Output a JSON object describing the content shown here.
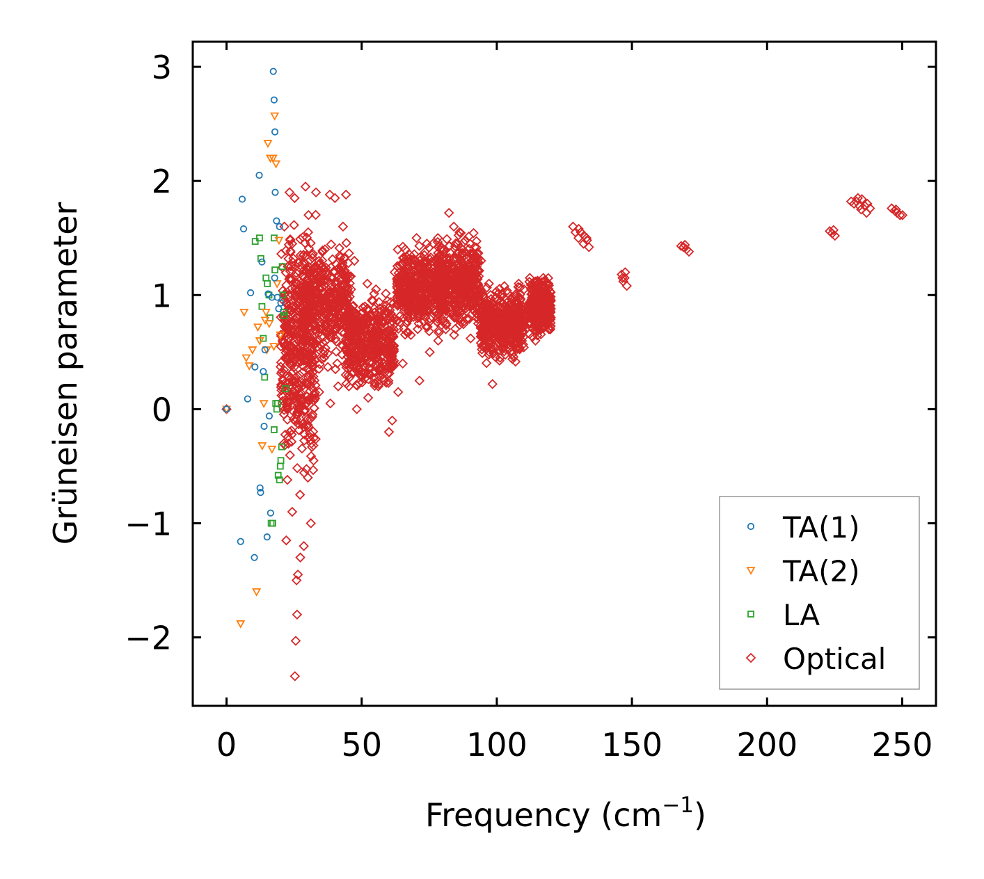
{
  "chart_data": {
    "type": "scatter",
    "title": "",
    "xlabel": "Frequency (cm",
    "xlabel_sup": "−1",
    "xlabel_close": ")",
    "ylabel": "Grüneisen parameter",
    "xlim": [
      -12.5,
      262.5
    ],
    "ylim": [
      -2.6,
      3.22
    ],
    "xticks": [
      0,
      50,
      100,
      150,
      200,
      250
    ],
    "yticks": [
      3,
      2,
      1,
      0,
      -1,
      -2
    ],
    "xtick_labels": [
      "0",
      "50",
      "100",
      "150",
      "200",
      "250"
    ],
    "ytick_labels": [
      "3",
      "2",
      "1",
      "0",
      "−1",
      "−2"
    ],
    "legend_position": "lower-right",
    "series": [
      {
        "name": "TA(1)",
        "marker": "circle",
        "color": "#1f77b4",
        "points": [
          [
            0,
            0
          ],
          [
            5.8,
            1.84
          ],
          [
            6.3,
            1.58
          ],
          [
            7.8,
            0.09
          ],
          [
            8.9,
            1.02
          ],
          [
            10.5,
            0.37
          ],
          [
            12.1,
            2.05
          ],
          [
            12.6,
            -0.73
          ],
          [
            13.1,
            1.29
          ],
          [
            13.6,
            0.33
          ],
          [
            14.2,
            0.52
          ],
          [
            15,
            -1.12
          ],
          [
            15.4,
            1.01
          ],
          [
            16.3,
            -0.91
          ],
          [
            16.8,
            0.98
          ],
          [
            17.3,
            2.96
          ],
          [
            17.6,
            2.71
          ],
          [
            17.9,
            2.43
          ],
          [
            18,
            1.9
          ],
          [
            18.5,
            1.65
          ],
          [
            18.8,
            0.98
          ],
          [
            19.3,
            0.88
          ],
          [
            19.6,
            1.6
          ],
          [
            20.1,
            0.93
          ],
          [
            5.2,
            -1.16
          ],
          [
            10.3,
            -1.3
          ],
          [
            13.9,
            -0.15
          ],
          [
            15.8,
            -0.06
          ],
          [
            12.4,
            -0.69
          ],
          [
            17.8,
            1.15
          ]
        ]
      },
      {
        "name": "TA(2)",
        "marker": "triangle-down",
        "color": "#ff7f0e",
        "points": [
          [
            0,
            0
          ],
          [
            5.2,
            -1.88
          ],
          [
            6.5,
            0.85
          ],
          [
            7.3,
            0.45
          ],
          [
            8.4,
            0.38
          ],
          [
            9.6,
            0.52
          ],
          [
            11.1,
            -1.6
          ],
          [
            11.6,
            0.72
          ],
          [
            12.3,
            0.6
          ],
          [
            13.2,
            -0.32
          ],
          [
            13.8,
            0.05
          ],
          [
            14.3,
            0.78
          ],
          [
            14.6,
            0.85
          ],
          [
            15.3,
            2.33
          ],
          [
            15.8,
            0.75
          ],
          [
            16.2,
            2.2
          ],
          [
            16.8,
            -0.35
          ],
          [
            17.2,
            2.2
          ],
          [
            17.8,
            2.57
          ],
          [
            18.3,
            2.15
          ],
          [
            18.7,
            1.1
          ],
          [
            19.4,
            1.48
          ],
          [
            19.9,
            0.65
          ],
          [
            14.9,
            0.52
          ],
          [
            17.5,
            0.55
          ]
        ]
      },
      {
        "name": "LA",
        "marker": "square",
        "color": "#2ca02c",
        "points": [
          [
            10.6,
            1.47
          ],
          [
            12.2,
            1.5
          ],
          [
            12.7,
            1.32
          ],
          [
            13.1,
            0.9
          ],
          [
            13.6,
            0.62
          ],
          [
            14.1,
            0.28
          ],
          [
            14.6,
            1.15
          ],
          [
            15.1,
            1.1
          ],
          [
            15.7,
            1.0
          ],
          [
            16.1,
            0.8
          ],
          [
            16.5,
            -1.0
          ],
          [
            17.1,
            -1.0
          ],
          [
            17.6,
            1.5
          ],
          [
            17.9,
            1.22
          ],
          [
            18.2,
            0.05
          ],
          [
            18.6,
            0.0
          ],
          [
            19.1,
            -0.58
          ],
          [
            19.6,
            -0.62
          ],
          [
            20.1,
            -0.45
          ],
          [
            20.4,
            -0.33
          ],
          [
            20.6,
            1.25
          ],
          [
            21.1,
            0.85
          ],
          [
            21.4,
            0.82
          ],
          [
            21.8,
            0.18
          ],
          [
            20.8,
            1.0
          ],
          [
            17.6,
            -0.18
          ],
          [
            18.9,
            0.05
          ],
          [
            19.9,
            -0.5
          ]
        ]
      },
      {
        "name": "Optical",
        "marker": "diamond",
        "color": "#d62728",
        "points": [
          [
            0,
            0
          ],
          [
            25.3,
            -2.34
          ],
          [
            25.6,
            -2.03
          ],
          [
            26.1,
            -1.8
          ],
          [
            25.9,
            -1.5
          ],
          [
            26.4,
            -1.45
          ],
          [
            27.3,
            -1.3
          ],
          [
            28.6,
            -1.2
          ],
          [
            31.2,
            -1.0
          ],
          [
            22.1,
            -1.15
          ],
          [
            24.3,
            -0.9
          ],
          [
            27.2,
            -0.75
          ],
          [
            30.1,
            -0.6
          ],
          [
            32.2,
            -0.45
          ],
          [
            21.2,
            -0.3
          ],
          [
            23.4,
            -0.2
          ],
          [
            29.6,
            -0.15
          ],
          [
            26.2,
            0.05
          ],
          [
            34.3,
            0.15
          ],
          [
            38.4,
            0.05
          ],
          [
            41.3,
            0.2
          ],
          [
            44.1,
            0.3
          ],
          [
            48.2,
            0.0
          ],
          [
            52.4,
            0.1
          ],
          [
            56.2,
            0.2
          ],
          [
            60.1,
            -0.2
          ],
          [
            61.3,
            -0.1
          ],
          [
            63.5,
            0.15
          ],
          [
            65.2,
            0.4
          ],
          [
            71.4,
            0.25
          ],
          [
            75.2,
            0.5
          ],
          [
            78.3,
            0.6
          ],
          [
            81.1,
            0.7
          ],
          [
            84.2,
            0.65
          ],
          [
            90.3,
            0.62
          ],
          [
            94.1,
            0.58
          ],
          [
            98.4,
            0.22
          ],
          [
            101.2,
            0.45
          ],
          [
            106.3,
            0.75
          ],
          [
            110.1,
            1.05
          ],
          [
            114.3,
            0.6
          ],
          [
            118.2,
            1.0
          ],
          [
            23.3,
            1.9
          ],
          [
            25.2,
            1.85
          ],
          [
            29.2,
            1.95
          ],
          [
            33.1,
            1.9
          ],
          [
            38.2,
            1.88
          ],
          [
            40.1,
            1.85
          ],
          [
            44.2,
            1.88
          ],
          [
            21.4,
            1.6
          ],
          [
            24.3,
            1.45
          ],
          [
            27.4,
            1.35
          ],
          [
            30.2,
            1.55
          ],
          [
            36.4,
            1.4
          ],
          [
            43.1,
            1.6
          ],
          [
            47.3,
            1.3
          ],
          [
            52.1,
            1.1
          ],
          [
            55.3,
            1.05
          ],
          [
            62.2,
            1.2
          ],
          [
            66.1,
            1.4
          ],
          [
            70.3,
            1.5
          ],
          [
            74.1,
            1.45
          ],
          [
            78.2,
            1.5
          ],
          [
            82.3,
            1.72
          ],
          [
            84.1,
            1.6
          ],
          [
            86.2,
            1.55
          ],
          [
            90.1,
            1.45
          ],
          [
            94.2,
            1.3
          ],
          [
            97.1,
            1.1
          ],
          [
            100.3,
            0.95
          ],
          [
            104.2,
            0.85
          ],
          [
            108.1,
            1.1
          ],
          [
            113.1,
            0.8
          ],
          [
            117.2,
            1.15
          ],
          [
            31.4,
            1.0
          ],
          [
            33.2,
            0.85
          ],
          [
            35.1,
            0.7
          ],
          [
            37.3,
            0.9
          ],
          [
            39.2,
            1.15
          ],
          [
            42.1,
            0.8
          ],
          [
            45.3,
            0.65
          ],
          [
            47.1,
            0.55
          ],
          [
            50.2,
            0.75
          ],
          [
            53.1,
            0.6
          ],
          [
            55.1,
            0.45
          ],
          [
            58.3,
            0.5
          ],
          [
            59.2,
            0.85
          ],
          [
            64.1,
            0.95
          ],
          [
            67.2,
            1.05
          ],
          [
            69.1,
            0.9
          ],
          [
            72.3,
            1.2
          ],
          [
            76.1,
            1.05
          ],
          [
            80.2,
            1.1
          ],
          [
            83.3,
            0.95
          ],
          [
            86.1,
            1.25
          ],
          [
            88.2,
            1.15
          ],
          [
            91.3,
            1.05
          ],
          [
            95.2,
            0.98
          ],
          [
            99.1,
            0.7
          ],
          [
            103.2,
            0.6
          ],
          [
            28.1,
            0.5
          ],
          [
            30.3,
            0.3
          ],
          [
            32.4,
            1.2
          ],
          [
            34.2,
            1.3
          ],
          [
            36.1,
            0.45
          ],
          [
            40.3,
            0.35
          ],
          [
            43.2,
            1.25
          ],
          [
            46.1,
            1.05
          ],
          [
            49.3,
            0.3
          ],
          [
            51.2,
            0.9
          ],
          [
            54.2,
            0.95
          ],
          [
            57.1,
            0.7
          ],
          [
            60.2,
            0.55
          ],
          [
            63.1,
            0.78
          ],
          [
            68.2,
            0.65
          ],
          [
            71.1,
            0.75
          ],
          [
            73.2,
            1.35
          ],
          [
            77.1,
            0.85
          ],
          [
            79.1,
            1.3
          ],
          [
            85.1,
            0.8
          ],
          [
            87.2,
            1.4
          ],
          [
            89.1,
            0.9
          ],
          [
            92.2,
            1.2
          ],
          [
            96.1,
            0.8
          ],
          [
            102.1,
            1.0
          ],
          [
            105.2,
            0.55
          ],
          [
            107.1,
            0.95
          ],
          [
            111.2,
            0.9
          ],
          [
            115.1,
            0.7
          ],
          [
            119.1,
            1.1
          ],
          [
            22.3,
            0.7
          ],
          [
            24.2,
            0.55
          ],
          [
            26.3,
            1.1
          ],
          [
            28.3,
            0.8
          ],
          [
            33.3,
            0.6
          ],
          [
            37.2,
            1.0
          ],
          [
            41.2,
            0.95
          ],
          [
            45.2,
            0.85
          ],
          [
            48.1,
            0.5
          ],
          [
            53.3,
            0.3
          ],
          [
            56.3,
            0.85
          ],
          [
            58.2,
            0.25
          ],
          [
            61.2,
            0.4
          ],
          [
            65.3,
            0.9
          ],
          [
            69.3,
            1.25
          ],
          [
            74.2,
            0.95
          ],
          [
            81.2,
            0.9
          ],
          [
            93.1,
            0.75
          ],
          [
            97.2,
            0.5
          ],
          [
            128.2,
            1.6
          ],
          [
            129.1,
            1.55
          ],
          [
            130.2,
            1.5
          ],
          [
            131.1,
            1.55
          ],
          [
            132.1,
            1.45
          ],
          [
            133.2,
            1.5
          ],
          [
            134.1,
            1.42
          ],
          [
            130.3,
            1.58
          ],
          [
            132.3,
            1.52
          ],
          [
            133.4,
            1.48
          ],
          [
            146.2,
            1.18
          ],
          [
            146.8,
            1.12
          ],
          [
            147.3,
            1.15
          ],
          [
            148.1,
            1.08
          ],
          [
            147.5,
            1.2
          ],
          [
            146.5,
            1.15
          ],
          [
            168.2,
            1.43
          ],
          [
            169.1,
            1.42
          ],
          [
            170.2,
            1.4
          ],
          [
            171.1,
            1.38
          ],
          [
            169.6,
            1.44
          ],
          [
            223.2,
            1.56
          ],
          [
            224.1,
            1.54
          ],
          [
            225.1,
            1.52
          ],
          [
            224.6,
            1.57
          ],
          [
            231.1,
            1.82
          ],
          [
            232.2,
            1.8
          ],
          [
            233.1,
            1.82
          ],
          [
            234.2,
            1.78
          ],
          [
            235.1,
            1.84
          ],
          [
            236.2,
            1.78
          ],
          [
            237.1,
            1.8
          ],
          [
            238.1,
            1.76
          ],
          [
            236.8,
            1.72
          ],
          [
            234.8,
            1.75
          ],
          [
            233.6,
            1.85
          ],
          [
            246.1,
            1.76
          ],
          [
            247.2,
            1.74
          ],
          [
            248.1,
            1.72
          ],
          [
            249.2,
            1.7
          ],
          [
            250.1,
            1.7
          ],
          [
            247.7,
            1.75
          ]
        ]
      }
    ],
    "optical_dense_regions": [
      {
        "x_range": [
          20,
          33
        ],
        "y_range": [
          -0.9,
          1.9
        ]
      },
      {
        "x_range": [
          28,
          46
        ],
        "y_range": [
          0.3,
          1.6
        ]
      },
      {
        "x_range": [
          44,
          62
        ],
        "y_range": [
          0.05,
          1.1
        ]
      },
      {
        "x_range": [
          63,
          80
        ],
        "y_range": [
          0.6,
          1.5
        ]
      },
      {
        "x_range": [
          78,
          94
        ],
        "y_range": [
          0.6,
          1.6
        ]
      },
      {
        "x_range": [
          94,
          110
        ],
        "y_range": [
          0.35,
          1.15
        ]
      },
      {
        "x_range": [
          112,
          120
        ],
        "y_range": [
          0.6,
          1.2
        ]
      }
    ]
  }
}
